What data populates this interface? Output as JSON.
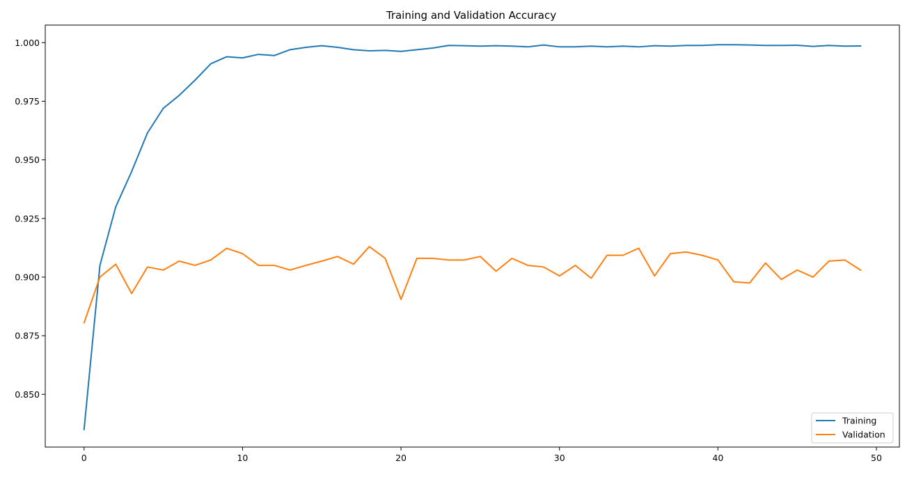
{
  "chart_data": {
    "type": "line",
    "title": "Training and Validation Accuracy",
    "xlabel": "",
    "ylabel": "",
    "xlim": [
      -2.45,
      51.45
    ],
    "ylim": [
      0.8275,
      1.0075
    ],
    "xticks": [
      0,
      10,
      20,
      30,
      40,
      50
    ],
    "yticks": [
      0.85,
      0.875,
      0.9,
      0.925,
      0.95,
      0.975,
      1.0
    ],
    "ytick_labels": [
      "0.850",
      "0.875",
      "0.900",
      "0.925",
      "0.950",
      "0.975",
      "1.000"
    ],
    "grid": false,
    "legend_position": "lower-right",
    "x": [
      0,
      1,
      2,
      3,
      4,
      5,
      6,
      7,
      8,
      9,
      10,
      11,
      12,
      13,
      14,
      15,
      16,
      17,
      18,
      19,
      20,
      21,
      22,
      23,
      24,
      25,
      26,
      27,
      28,
      29,
      30,
      31,
      32,
      33,
      34,
      35,
      36,
      37,
      38,
      39,
      40,
      41,
      42,
      43,
      44,
      45,
      46,
      47,
      48,
      49
    ],
    "series": [
      {
        "name": "Training",
        "color": "#1f77b4",
        "values": [
          0.835,
          0.905,
          0.93,
          0.945,
          0.9615,
          0.972,
          0.9775,
          0.984,
          0.991,
          0.994,
          0.9935,
          0.995,
          0.9945,
          0.997,
          0.998,
          0.9987,
          0.998,
          0.997,
          0.9965,
          0.9967,
          0.9963,
          0.997,
          0.9977,
          0.9988,
          0.9987,
          0.9985,
          0.9987,
          0.9985,
          0.9982,
          0.999,
          0.9982,
          0.9982,
          0.9985,
          0.9982,
          0.9985,
          0.9982,
          0.9987,
          0.9985,
          0.9988,
          0.9988,
          0.9991,
          0.9991,
          0.999,
          0.9988,
          0.9988,
          0.9989,
          0.9984,
          0.9988,
          0.9985,
          0.9986
        ]
      },
      {
        "name": "Validation",
        "color": "#ff7f0e",
        "values": [
          0.8805,
          0.9,
          0.9055,
          0.893,
          0.9043,
          0.903,
          0.9068,
          0.905,
          0.9073,
          0.9123,
          0.91,
          0.905,
          0.905,
          0.903,
          0.905,
          0.9068,
          0.9088,
          0.9055,
          0.913,
          0.908,
          0.8905,
          0.908,
          0.908,
          0.9073,
          0.9073,
          0.9088,
          0.9025,
          0.908,
          0.905,
          0.9043,
          0.9005,
          0.905,
          0.8995,
          0.9093,
          0.9093,
          0.9123,
          0.9005,
          0.91,
          0.9107,
          0.9093,
          0.9073,
          0.898,
          0.8975,
          0.906,
          0.899,
          0.903,
          0.9,
          0.9068,
          0.9073,
          0.903
        ]
      }
    ]
  }
}
